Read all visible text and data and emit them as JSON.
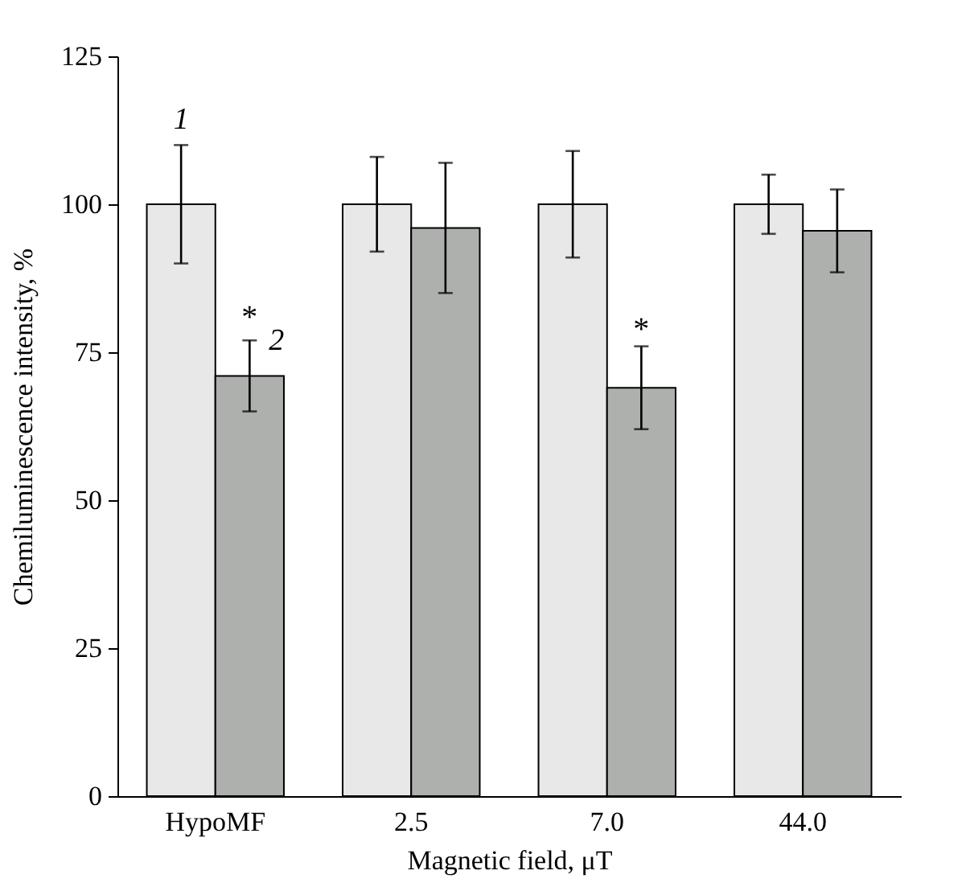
{
  "chart_data": {
    "type": "bar",
    "xlabel": "Magnetic field, μT",
    "ylabel": "Chemiluminescence intensity, %",
    "categories": [
      "HypoMF",
      "2.5",
      "7.0",
      "44.0"
    ],
    "series": [
      {
        "name": "1",
        "color": "#e8e8e8",
        "values": [
          100,
          100,
          100,
          100
        ],
        "errors": [
          10,
          8,
          9,
          5
        ]
      },
      {
        "name": "2",
        "color": "#aeb0ae",
        "values": [
          71,
          96,
          69,
          95.5
        ],
        "errors": [
          6,
          11,
          7,
          7
        ]
      }
    ],
    "ylim": [
      0,
      125
    ],
    "yticks": [
      0,
      25,
      50,
      75,
      100,
      125
    ],
    "grid": false,
    "legend": false,
    "annotations": [
      {
        "text": "*",
        "x": "HypoMF",
        "y": 77
      },
      {
        "text": "*",
        "x": "7.0",
        "y": 75
      }
    ]
  }
}
